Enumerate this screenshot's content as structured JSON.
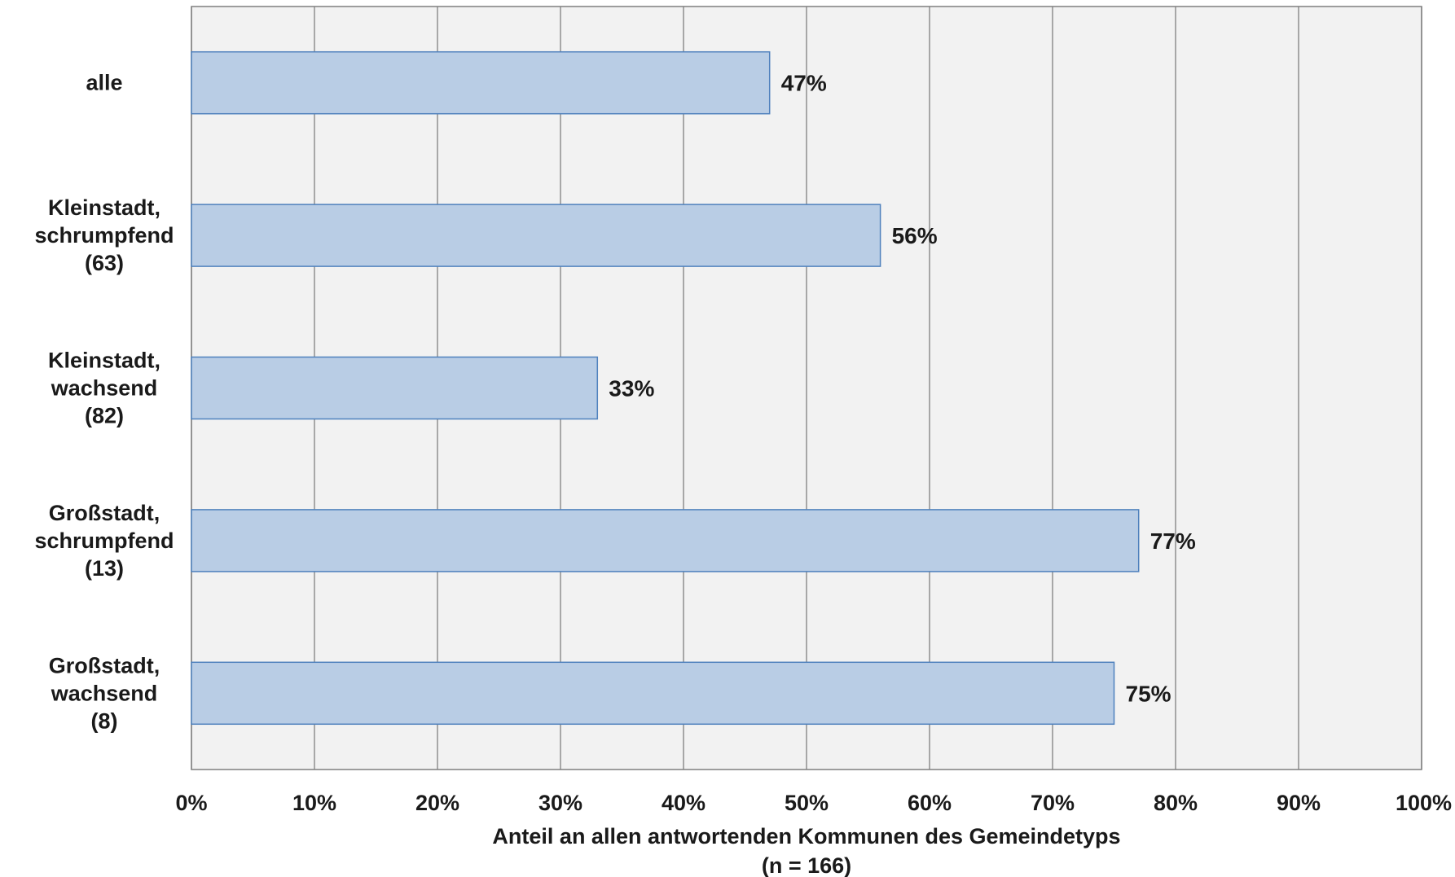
{
  "chart_data": {
    "type": "bar",
    "orientation": "horizontal",
    "categories": [
      [
        "alle"
      ],
      [
        "Kleinstadt,",
        "schrumpfend",
        "(63)"
      ],
      [
        "Kleinstadt,",
        "wachsend",
        "(82)"
      ],
      [
        "Großstadt,",
        "schrumpfend",
        "(13)"
      ],
      [
        "Großstadt,",
        "wachsend",
        "(8)"
      ]
    ],
    "values": [
      47,
      56,
      33,
      77,
      75
    ],
    "data_labels": [
      "47%",
      "56%",
      "33%",
      "77%",
      "75%"
    ],
    "xlim": [
      0,
      100
    ],
    "x_ticks": [
      0,
      10,
      20,
      30,
      40,
      50,
      60,
      70,
      80,
      90,
      100
    ],
    "x_tick_labels": [
      "0%",
      "10%",
      "20%",
      "30%",
      "40%",
      "50%",
      "60%",
      "70%",
      "80%",
      "90%",
      "100%"
    ],
    "xlabel": [
      "Anteil an allen antwortenden Kommunen des Gemeindetyps",
      "(n = 166)"
    ],
    "grid": "vertical",
    "colors": {
      "bar_fill": "#b9cde5",
      "bar_stroke": "#4f81bd",
      "plot_bg": "#f2f2f2",
      "grid": "#7f7f7f",
      "text": "#1a1a1a"
    }
  }
}
